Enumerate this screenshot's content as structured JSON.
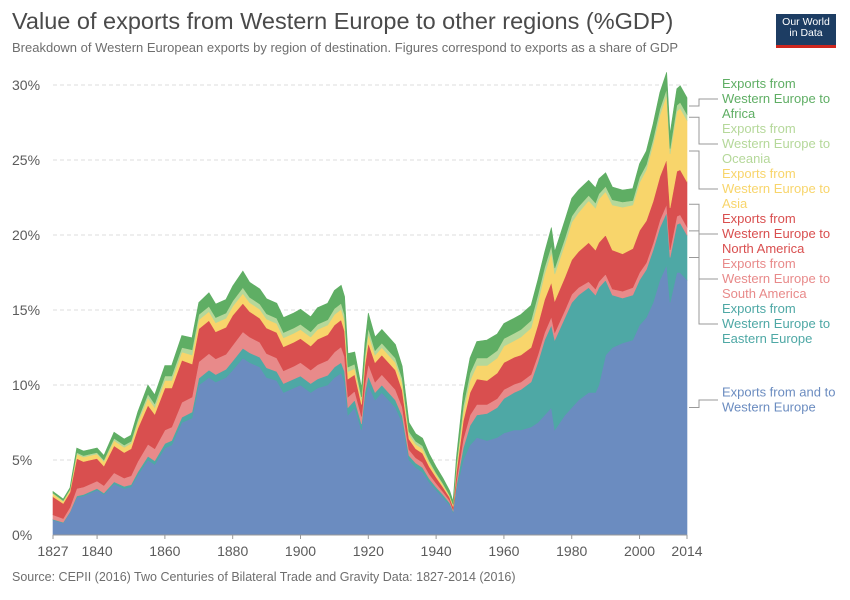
{
  "header": {
    "title": "Value of exports from Western Europe to other regions (%GDP)",
    "subtitle": "Breakdown of Western European exports by region of destination. Figures correspond to exports as a share of GDP",
    "logo_line1": "Our World",
    "logo_line2": "in Data"
  },
  "footer": {
    "source": "Source: CEPII (2016) Two Centuries of Bilateral Trade and Gravity Data: 1827-2014 (2016)"
  },
  "chart_data": {
    "type": "area",
    "stacked": true,
    "xlabel": "",
    "ylabel": "",
    "xlim": [
      1827,
      2014
    ],
    "ylim": [
      0,
      30
    ],
    "xticks": [
      "1827",
      "1840",
      "1860",
      "1880",
      "1900",
      "1920",
      "1940",
      "1960",
      "1980",
      "2000",
      "2014"
    ],
    "yticks": [
      "0%",
      "5%",
      "10%",
      "15%",
      "20%",
      "25%",
      "30%"
    ],
    "grid": true,
    "legend_position": "right",
    "x": [
      1827,
      1830,
      1832,
      1834,
      1836,
      1838,
      1840,
      1842,
      1845,
      1848,
      1850,
      1852,
      1855,
      1857,
      1860,
      1862,
      1865,
      1868,
      1870,
      1873,
      1875,
      1878,
      1880,
      1883,
      1885,
      1888,
      1890,
      1893,
      1895,
      1898,
      1900,
      1903,
      1905,
      1908,
      1910,
      1912,
      1913,
      1914,
      1916,
      1918,
      1919,
      1920,
      1922,
      1924,
      1926,
      1928,
      1930,
      1932,
      1934,
      1936,
      1938,
      1940,
      1942,
      1944,
      1945,
      1946,
      1948,
      1950,
      1952,
      1955,
      1958,
      1960,
      1963,
      1965,
      1968,
      1970,
      1972,
      1974,
      1975,
      1978,
      1980,
      1982,
      1985,
      1987,
      1988,
      1990,
      1992,
      1995,
      1998,
      2000,
      2002,
      2004,
      2006,
      2008,
      2009,
      2011,
      2012,
      2014
    ],
    "series": [
      {
        "name": "Exports from and to Western Europe",
        "color": "#6b8cc0",
        "values": [
          1.0,
          0.8,
          1.5,
          2.5,
          2.6,
          2.8,
          3.0,
          2.7,
          3.4,
          3.1,
          3.2,
          4.0,
          5.0,
          4.7,
          5.8,
          6.0,
          7.5,
          7.8,
          10.0,
          10.5,
          10.2,
          10.5,
          11.0,
          11.8,
          11.5,
          11.2,
          10.5,
          10.3,
          9.5,
          9.8,
          10.0,
          9.5,
          9.8,
          10.0,
          10.5,
          10.8,
          10.2,
          8.0,
          8.5,
          7.0,
          9.0,
          10.0,
          9.0,
          9.5,
          9.0,
          8.5,
          7.5,
          5.0,
          4.5,
          4.2,
          3.5,
          3.0,
          2.5,
          2.0,
          1.5,
          3.0,
          5.0,
          6.0,
          6.5,
          6.3,
          6.5,
          6.8,
          7.0,
          7.0,
          7.2,
          7.5,
          8.0,
          8.5,
          7.0,
          8.0,
          8.5,
          9.0,
          9.5,
          9.5,
          10.0,
          12.0,
          12.5,
          12.8,
          13.0,
          14.0,
          14.5,
          15.5,
          17.0,
          18.0,
          15.5,
          17.5,
          17.5,
          17.0
        ]
      },
      {
        "name": "Exports from Western Europe to Eastern Europe",
        "color": "#4ea8a5",
        "values": [
          0.05,
          0.05,
          0.05,
          0.1,
          0.1,
          0.1,
          0.1,
          0.1,
          0.15,
          0.15,
          0.15,
          0.2,
          0.25,
          0.25,
          0.3,
          0.3,
          0.35,
          0.4,
          0.45,
          0.5,
          0.5,
          0.55,
          0.6,
          0.65,
          0.65,
          0.65,
          0.65,
          0.6,
          0.6,
          0.6,
          0.6,
          0.6,
          0.6,
          0.65,
          0.7,
          0.7,
          0.7,
          0.5,
          0.5,
          0.4,
          0.5,
          0.6,
          0.5,
          0.5,
          0.5,
          0.5,
          0.45,
          0.3,
          0.3,
          0.3,
          0.25,
          0.2,
          0.2,
          0.15,
          0.1,
          0.3,
          0.8,
          1.3,
          1.5,
          1.8,
          2.0,
          2.3,
          2.5,
          2.7,
          3.0,
          4.0,
          5.0,
          5.5,
          6.0,
          6.5,
          7.0,
          7.0,
          7.0,
          6.5,
          6.5,
          5.0,
          3.5,
          3.0,
          3.0,
          3.0,
          3.2,
          3.5,
          3.5,
          3.5,
          3.0,
          3.2,
          3.3,
          3.0
        ]
      },
      {
        "name": "Exports from Western Europe to South America",
        "color": "#e88a8a",
        "values": [
          0.3,
          0.25,
          0.3,
          0.5,
          0.5,
          0.5,
          0.5,
          0.5,
          0.6,
          0.55,
          0.6,
          0.7,
          0.8,
          0.8,
          0.9,
          0.9,
          1.0,
          1.0,
          1.1,
          1.1,
          1.05,
          1.0,
          1.05,
          1.1,
          1.05,
          1.0,
          0.95,
          0.9,
          0.85,
          0.85,
          0.9,
          0.9,
          0.95,
          1.0,
          1.0,
          1.05,
          1.0,
          0.7,
          0.6,
          0.5,
          0.6,
          0.8,
          0.7,
          0.7,
          0.7,
          0.7,
          0.6,
          0.4,
          0.35,
          0.35,
          0.3,
          0.25,
          0.2,
          0.15,
          0.1,
          0.3,
          0.6,
          0.7,
          0.7,
          0.6,
          0.6,
          0.6,
          0.55,
          0.5,
          0.5,
          0.5,
          0.5,
          0.55,
          0.5,
          0.5,
          0.55,
          0.5,
          0.4,
          0.4,
          0.4,
          0.4,
          0.4,
          0.45,
          0.5,
          0.5,
          0.45,
          0.45,
          0.5,
          0.55,
          0.5,
          0.55,
          0.55,
          0.55
        ]
      },
      {
        "name": "Exports from Western Europe to North America",
        "color": "#d94f4f",
        "values": [
          1.2,
          1.0,
          1.0,
          2.0,
          1.7,
          1.6,
          1.5,
          1.3,
          1.8,
          1.7,
          1.8,
          2.2,
          2.6,
          2.3,
          2.8,
          2.6,
          2.8,
          2.2,
          2.2,
          2.2,
          1.8,
          1.8,
          2.0,
          1.9,
          1.7,
          1.6,
          1.7,
          1.7,
          1.6,
          1.6,
          1.6,
          1.6,
          1.7,
          1.7,
          1.8,
          1.8,
          1.7,
          1.2,
          1.1,
          0.8,
          1.2,
          1.4,
          1.3,
          1.3,
          1.3,
          1.3,
          1.1,
          0.7,
          0.6,
          0.6,
          0.5,
          0.4,
          0.3,
          0.2,
          0.2,
          0.6,
          1.2,
          1.5,
          1.7,
          1.6,
          1.7,
          1.8,
          1.8,
          1.8,
          1.8,
          2.0,
          2.2,
          2.3,
          2.1,
          2.2,
          2.3,
          2.4,
          2.6,
          2.6,
          2.6,
          2.6,
          2.6,
          2.5,
          2.6,
          2.8,
          2.8,
          2.8,
          2.9,
          3.0,
          2.8,
          3.0,
          3.0,
          3.0
        ]
      },
      {
        "name": "Exports from Western Europe to Asia",
        "color": "#f8d56b",
        "values": [
          0.2,
          0.15,
          0.15,
          0.3,
          0.3,
          0.3,
          0.3,
          0.3,
          0.35,
          0.35,
          0.35,
          0.4,
          0.5,
          0.45,
          0.5,
          0.5,
          0.55,
          0.6,
          0.6,
          0.6,
          0.6,
          0.6,
          0.6,
          0.65,
          0.6,
          0.6,
          0.6,
          0.6,
          0.6,
          0.6,
          0.6,
          0.6,
          0.65,
          0.65,
          0.7,
          0.7,
          0.7,
          0.5,
          0.4,
          0.3,
          0.4,
          0.6,
          0.5,
          0.5,
          0.5,
          0.5,
          0.5,
          0.3,
          0.3,
          0.3,
          0.25,
          0.2,
          0.15,
          0.1,
          0.1,
          0.3,
          0.6,
          0.8,
          0.9,
          1.0,
          1.0,
          1.1,
          1.1,
          1.2,
          1.3,
          1.5,
          1.7,
          2.0,
          1.8,
          2.2,
          2.5,
          2.6,
          2.8,
          2.8,
          2.9,
          2.9,
          3.0,
          3.1,
          2.9,
          3.2,
          3.4,
          3.8,
          4.1,
          4.3,
          3.6,
          4.0,
          4.1,
          4.1
        ]
      },
      {
        "name": "Exports from Western Europe to Oceania",
        "color": "#b5d89a",
        "values": [
          0.05,
          0.05,
          0.05,
          0.1,
          0.1,
          0.1,
          0.1,
          0.1,
          0.15,
          0.15,
          0.15,
          0.2,
          0.25,
          0.25,
          0.3,
          0.3,
          0.3,
          0.35,
          0.35,
          0.35,
          0.35,
          0.35,
          0.35,
          0.4,
          0.35,
          0.35,
          0.35,
          0.35,
          0.35,
          0.35,
          0.35,
          0.35,
          0.35,
          0.35,
          0.4,
          0.4,
          0.4,
          0.3,
          0.3,
          0.2,
          0.3,
          0.4,
          0.3,
          0.3,
          0.3,
          0.3,
          0.3,
          0.2,
          0.2,
          0.2,
          0.15,
          0.1,
          0.1,
          0.05,
          0.05,
          0.2,
          0.4,
          0.5,
          0.5,
          0.5,
          0.5,
          0.5,
          0.5,
          0.5,
          0.5,
          0.5,
          0.45,
          0.45,
          0.4,
          0.4,
          0.4,
          0.4,
          0.35,
          0.35,
          0.35,
          0.35,
          0.35,
          0.35,
          0.3,
          0.35,
          0.35,
          0.35,
          0.4,
          0.4,
          0.35,
          0.4,
          0.4,
          0.4
        ]
      },
      {
        "name": "Exports from Western Europe to Africa",
        "color": "#5fae64",
        "values": [
          0.1,
          0.1,
          0.1,
          0.3,
          0.3,
          0.3,
          0.3,
          0.3,
          0.4,
          0.4,
          0.4,
          0.5,
          0.6,
          0.6,
          0.7,
          0.7,
          0.8,
          0.8,
          0.8,
          0.9,
          0.9,
          0.9,
          1.0,
          1.1,
          1.0,
          1.0,
          1.0,
          1.0,
          1.0,
          1.0,
          1.0,
          1.0,
          1.1,
          1.1,
          1.2,
          1.2,
          1.2,
          0.9,
          0.8,
          0.6,
          0.8,
          1.0,
          0.9,
          0.9,
          0.9,
          0.9,
          0.8,
          0.6,
          0.5,
          0.5,
          0.45,
          0.4,
          0.35,
          0.3,
          0.2,
          0.5,
          0.8,
          1.0,
          1.1,
          1.2,
          1.1,
          1.0,
          1.0,
          1.0,
          1.0,
          1.0,
          1.0,
          1.2,
          1.1,
          1.2,
          1.2,
          1.1,
          1.0,
          1.0,
          1.0,
          0.9,
          0.85,
          0.8,
          0.8,
          0.9,
          0.9,
          1.0,
          1.1,
          1.1,
          1.0,
          1.1,
          1.1,
          1.1
        ]
      }
    ]
  }
}
